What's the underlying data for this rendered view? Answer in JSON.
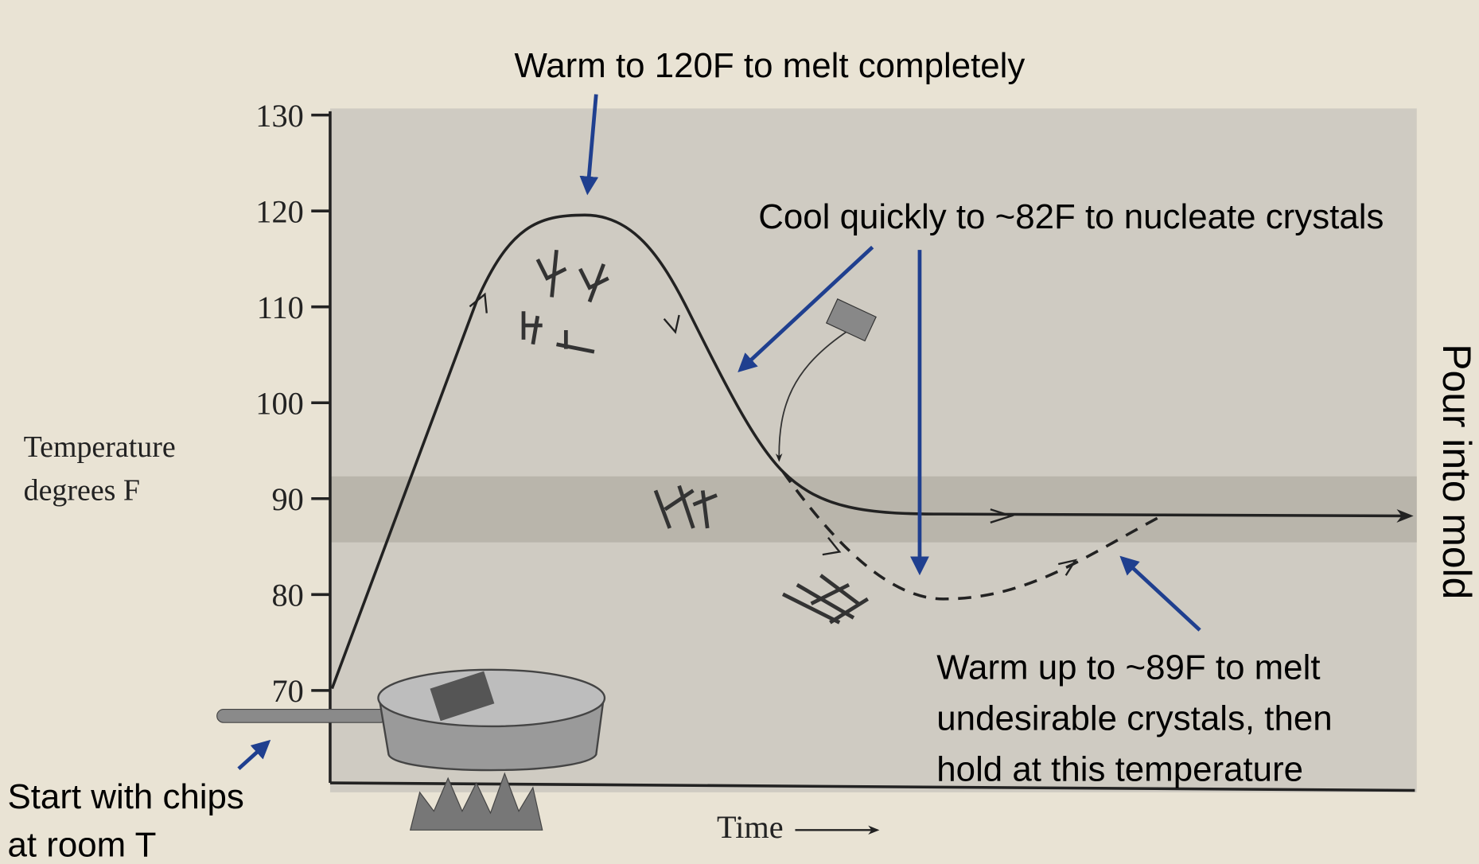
{
  "axis": {
    "label": [
      "Temperature",
      "degrees F"
    ],
    "ticks": [
      130,
      120,
      110,
      100,
      90,
      80,
      70
    ],
    "x_label": "Time"
  },
  "annotations": {
    "melt": [
      "Warm to 120F to melt completely"
    ],
    "cool": [
      "Cool quickly to ~82F to nucleate crystals"
    ],
    "rewarm": [
      "Warm up to ~89F to melt",
      "undesirable crystals, then",
      "hold at this temperature"
    ],
    "start": [
      "Start with chips",
      "at room T"
    ],
    "pour": [
      "Pour into mold"
    ]
  }
}
